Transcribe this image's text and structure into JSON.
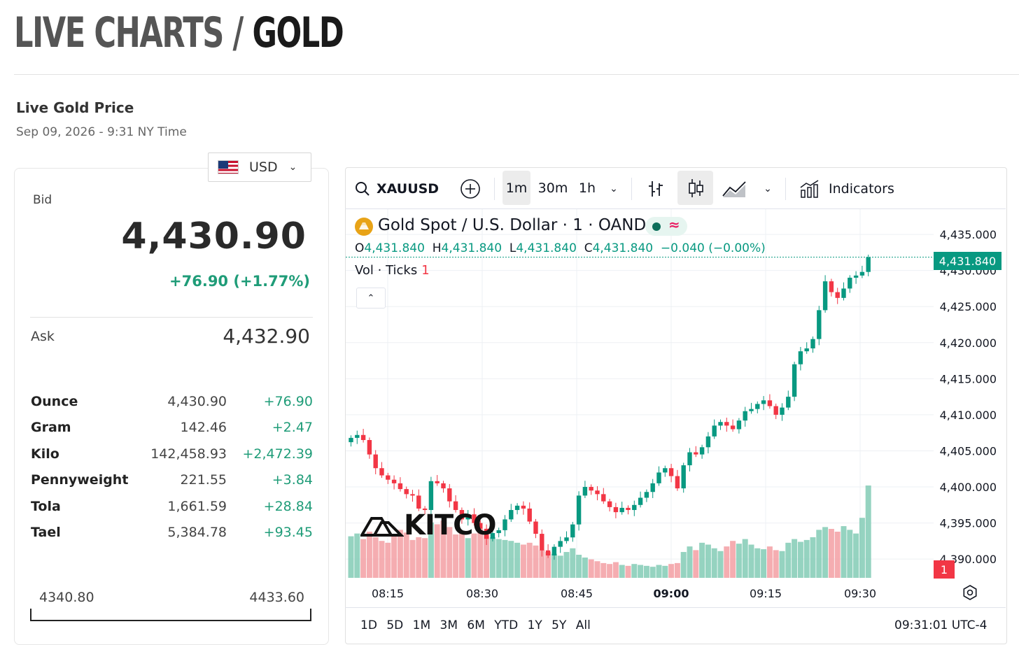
{
  "header": {
    "title_part1": "LIVE CHARTS / ",
    "title_part2": "GOLD"
  },
  "price_box": {
    "heading": "Live Gold Price",
    "timestamp": "Sep 09, 2026 - 9:31 NY Time",
    "currency": "USD",
    "bid_label": "Bid",
    "bid_value": "4,430.90",
    "bid_change": "+76.90 (+1.77%)",
    "ask_label": "Ask",
    "ask_value": "4,432.90",
    "units": [
      {
        "unit": "Ounce",
        "value": "4,430.90",
        "change": "+76.90"
      },
      {
        "unit": "Gram",
        "value": "142.46",
        "change": "+2.47"
      },
      {
        "unit": "Kilo",
        "value": "142,458.93",
        "change": "+2,472.39"
      },
      {
        "unit": "Pennyweight",
        "value": "221.55",
        "change": "+3.84"
      },
      {
        "unit": "Tola",
        "value": "1,661.59",
        "change": "+28.84"
      },
      {
        "unit": "Tael",
        "value": "5,384.78",
        "change": "+93.45"
      }
    ],
    "range_low": "4340.80",
    "range_high": "4433.60"
  },
  "toolbar": {
    "symbol": "XAUUSD",
    "intervals": [
      "1m",
      "30m",
      "1h"
    ],
    "active_interval": "1m",
    "indicators_label": "Indicators"
  },
  "legend": {
    "title": "Gold Spot / U.S. Dollar · 1 · OANDA",
    "o_label": "O",
    "o": "4,431.840",
    "h_label": "H",
    "h": "4,431.840",
    "l_label": "L",
    "l": "4,431.840",
    "c_label": "C",
    "c": "4,431.840",
    "change": "−0.040 (−0.00%)",
    "vol_label": "Vol · Ticks",
    "vol_value": "1"
  },
  "watermark": "KITCO",
  "footer": {
    "ranges": [
      "1D",
      "5D",
      "1M",
      "3M",
      "6M",
      "YTD",
      "1Y",
      "5Y",
      "All"
    ],
    "utc": "09:31:01 UTC-4"
  },
  "chart_data": {
    "type": "candlestick",
    "x_ticks": [
      "08:15",
      "08:30",
      "08:45",
      "09:00",
      "09:15",
      "09:30"
    ],
    "y_ticks": [
      "4,435.000",
      "4,430.000",
      "4,425.000",
      "4,420.000",
      "4,415.000",
      "4,410.000",
      "4,405.000",
      "4,400.000",
      "4,395.000",
      "4,390.000"
    ],
    "ylim": [
      4387.3,
      4438.5
    ],
    "last_price": "4,431.840",
    "tick_badge": "1",
    "up_color": "#089981",
    "down_color": "#f23645",
    "closes": [
      4406.8,
      4407.2,
      4406.5,
      4404.5,
      4402.6,
      4401.6,
      4401.0,
      4400.5,
      4399.7,
      4399.0,
      4398.8,
      4397.0,
      4396.8,
      4400.8,
      4400.5,
      4399.8,
      4398.0,
      4396.8,
      4395.5,
      4396.2,
      4395.0,
      4394.2,
      4392.8,
      4393.6,
      4394.0,
      4395.5,
      4396.8,
      4397.4,
      4397.0,
      4395.2,
      4393.5,
      4391.2,
      4390.5,
      4391.7,
      4392.5,
      4393.0,
      4394.8,
      4398.8,
      4400.0,
      4399.5,
      4399.0,
      4398.0,
      4397.2,
      4396.5,
      4397.1,
      4396.8,
      4397.5,
      4398.5,
      4399.3,
      4400.5,
      4402.0,
      4402.6,
      4401.5,
      4399.8,
      4403.0,
      4404.8,
      4404.5,
      4405.5,
      4407.0,
      4408.5,
      4409.0,
      4408.5,
      4408.0,
      4409.2,
      4410.5,
      4410.8,
      4411.5,
      4412.0,
      4411.2,
      4410.0,
      4411.0,
      4412.5,
      4417.0,
      4418.8,
      4419.2,
      4420.5,
      4424.5,
      4428.5,
      4427.0,
      4426.2,
      4427.5,
      4429.0,
      4429.3,
      4429.8,
      4431.84
    ],
    "volumes": [
      45,
      48,
      42,
      50,
      44,
      40,
      38,
      46,
      52,
      49,
      41,
      44,
      43,
      60,
      58,
      62,
      55,
      47,
      51,
      43,
      48,
      53,
      46,
      44,
      42,
      41,
      40,
      38,
      36,
      38,
      35,
      30,
      28,
      26,
      24,
      28,
      32,
      25,
      22,
      20,
      18,
      16,
      15,
      17,
      14,
      13,
      15,
      14,
      13,
      12,
      14,
      13,
      15,
      16,
      28,
      34,
      30,
      38,
      36,
      32,
      29,
      34,
      40,
      37,
      42,
      36,
      32,
      31,
      34,
      30,
      29,
      38,
      42,
      39,
      41,
      44,
      52,
      55,
      53,
      50,
      56,
      52,
      48,
      65,
      100
    ]
  }
}
